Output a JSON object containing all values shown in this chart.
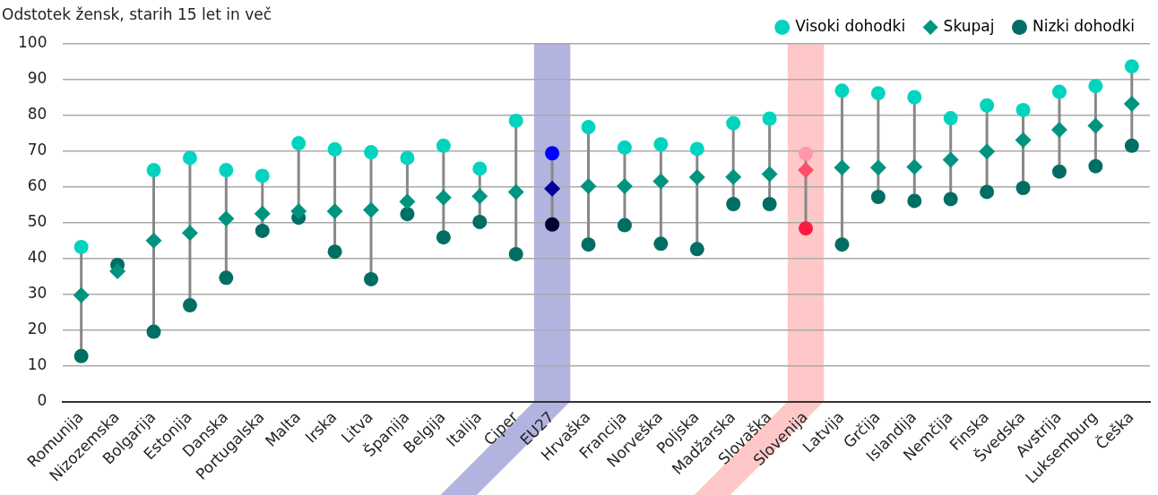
{
  "chart_data": {
    "type": "scatter",
    "title": "Odstotek žensk, starih 15 let in več",
    "categories": [
      "Romunija",
      "Nizozemska",
      "Bolgarija",
      "Estonija",
      "Danska",
      "Portugalska",
      "Malta",
      "Irska",
      "Litva",
      "Španija",
      "Belgija",
      "Italija",
      "Ciper",
      "EU27",
      "Hrvaška",
      "Francija",
      "Norveška",
      "Poljska",
      "Madžarska",
      "Slovaška",
      "Slovenija",
      "Latvija",
      "Grčija",
      "Islandija",
      "Nemčija",
      "Finska",
      "Švedska",
      "Avstrija",
      "Luksemburg",
      "Češka"
    ],
    "series": [
      {
        "name": "Visoki dohodki",
        "color": "#00d4bf",
        "marker": "circle",
        "colors": [
          "#00d4bf",
          "#00d4bf",
          "#00d4bf",
          "#00d4bf",
          "#00d4bf",
          "#00d4bf",
          "#00d4bf",
          "#00d4bf",
          "#00d4bf",
          "#00d4bf",
          "#00d4bf",
          "#00d4bf",
          "#00d4bf",
          "#0000ff",
          "#00d4bf",
          "#00d4bf",
          "#00d4bf",
          "#00d4bf",
          "#00d4bf",
          "#00d4bf",
          "#ff99a8",
          "#00d4bf",
          "#00d4bf",
          "#00d4bf",
          "#00d4bf",
          "#00d4bf",
          "#00d4bf",
          "#00d4bf",
          "#00d4bf",
          "#00d4bf"
        ],
        "values": [
          43.2,
          null,
          64.7,
          68.1,
          64.7,
          63.1,
          72.2,
          70.5,
          69.7,
          68.1,
          71.5,
          65.1,
          78.5,
          69.4,
          76.7,
          71.0,
          71.9,
          70.6,
          77.8,
          79.1,
          69.3,
          86.9,
          86.2,
          85.1,
          79.2,
          82.8,
          81.5,
          86.6,
          88.2,
          93.7
        ]
      },
      {
        "name": "Skupaj",
        "color": "#009480",
        "marker": "diamond",
        "colors": [
          "#009480",
          "#009480",
          "#009480",
          "#009480",
          "#009480",
          "#009480",
          "#009480",
          "#009480",
          "#009480",
          "#009480",
          "#009480",
          "#009480",
          "#009480",
          "#000099",
          "#009480",
          "#009480",
          "#009480",
          "#009480",
          "#009480",
          "#009480",
          "#ff4d6a",
          "#009480",
          "#009480",
          "#009480",
          "#009480",
          "#009480",
          "#009480",
          "#009480",
          "#009480",
          "#009480"
        ],
        "values": [
          29.7,
          36.4,
          45.0,
          47.1,
          51.1,
          52.5,
          53.2,
          53.2,
          53.6,
          55.9,
          57.0,
          57.4,
          58.6,
          59.5,
          60.2,
          60.2,
          61.6,
          62.7,
          62.8,
          63.6,
          64.7,
          65.4,
          65.4,
          65.6,
          67.6,
          69.9,
          73.1,
          76.0,
          77.1,
          83.2
        ]
      },
      {
        "name": "Nizki dohodki",
        "color": "#006e62",
        "marker": "circle",
        "colors": [
          "#006e62",
          "#006e62",
          "#006e62",
          "#006e62",
          "#006e62",
          "#006e62",
          "#006e62",
          "#006e62",
          "#006e62",
          "#006e62",
          "#006e62",
          "#006e62",
          "#006e62",
          "#000033",
          "#006e62",
          "#006e62",
          "#006e62",
          "#006e62",
          "#006e62",
          "#006e62",
          "#ff1a44",
          "#006e62",
          "#006e62",
          "#006e62",
          "#006e62",
          "#006e62",
          "#006e62",
          "#006e62",
          "#006e62",
          "#006e62"
        ],
        "values": [
          12.7,
          38.2,
          19.5,
          26.9,
          34.6,
          47.7,
          51.4,
          41.9,
          34.2,
          52.4,
          45.9,
          50.2,
          41.2,
          49.5,
          43.9,
          49.3,
          44.1,
          42.6,
          55.2,
          55.2,
          48.4,
          43.9,
          57.2,
          56.1,
          56.6,
          58.6,
          59.7,
          64.3,
          65.8,
          71.5
        ]
      }
    ],
    "ylim": [
      0,
      100
    ],
    "yticks": [
      0,
      10,
      20,
      30,
      40,
      50,
      60,
      70,
      80,
      90,
      100
    ],
    "grid": "y",
    "legend": "top right",
    "bands": [
      {
        "axis": "x",
        "from": "EU27",
        "to": "EU27",
        "color": "#b3b3e0"
      },
      {
        "axis": "x",
        "from": "Slovenija",
        "to": "Slovenija",
        "color": "#ffc8c8"
      }
    ]
  }
}
